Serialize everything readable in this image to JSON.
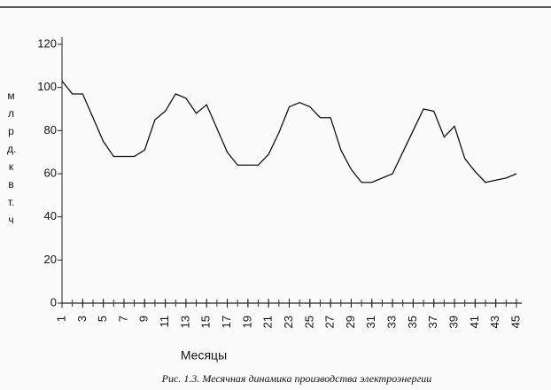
{
  "chart_data": {
    "type": "line",
    "caption": "Рис. 1.3. Месячная динамика производства электроэнергии",
    "x_label": "Месяцы",
    "y_label": "млрд. квт. ч",
    "x": [
      1,
      2,
      3,
      4,
      5,
      6,
      7,
      8,
      9,
      10,
      11,
      12,
      13,
      14,
      15,
      16,
      17,
      18,
      19,
      20,
      21,
      22,
      23,
      24,
      25,
      26,
      27,
      28,
      29,
      30,
      31,
      32,
      33,
      34,
      35,
      36,
      37,
      38,
      39,
      40,
      41,
      42,
      43,
      44,
      45
    ],
    "values": [
      103,
      97,
      97,
      86,
      75,
      68,
      68,
      68,
      71,
      85,
      89,
      97,
      95,
      88,
      92,
      81,
      70,
      64,
      64,
      64,
      69,
      79,
      91,
      93,
      91,
      86,
      86,
      71,
      62,
      56,
      56,
      58,
      60,
      70,
      80,
      90,
      89,
      77,
      82,
      67,
      61,
      56,
      57,
      58,
      60
    ],
    "color": "#111111",
    "xlim": [
      1,
      45
    ],
    "xticks": [
      1,
      3,
      5,
      7,
      9,
      11,
      13,
      15,
      17,
      19,
      21,
      23,
      25,
      27,
      29,
      31,
      33,
      35,
      37,
      39,
      41,
      43,
      45
    ],
    "ylim": [
      0,
      120
    ],
    "yticks": [
      0,
      20,
      40,
      60,
      80,
      100,
      120
    ],
    "grid": false
  }
}
